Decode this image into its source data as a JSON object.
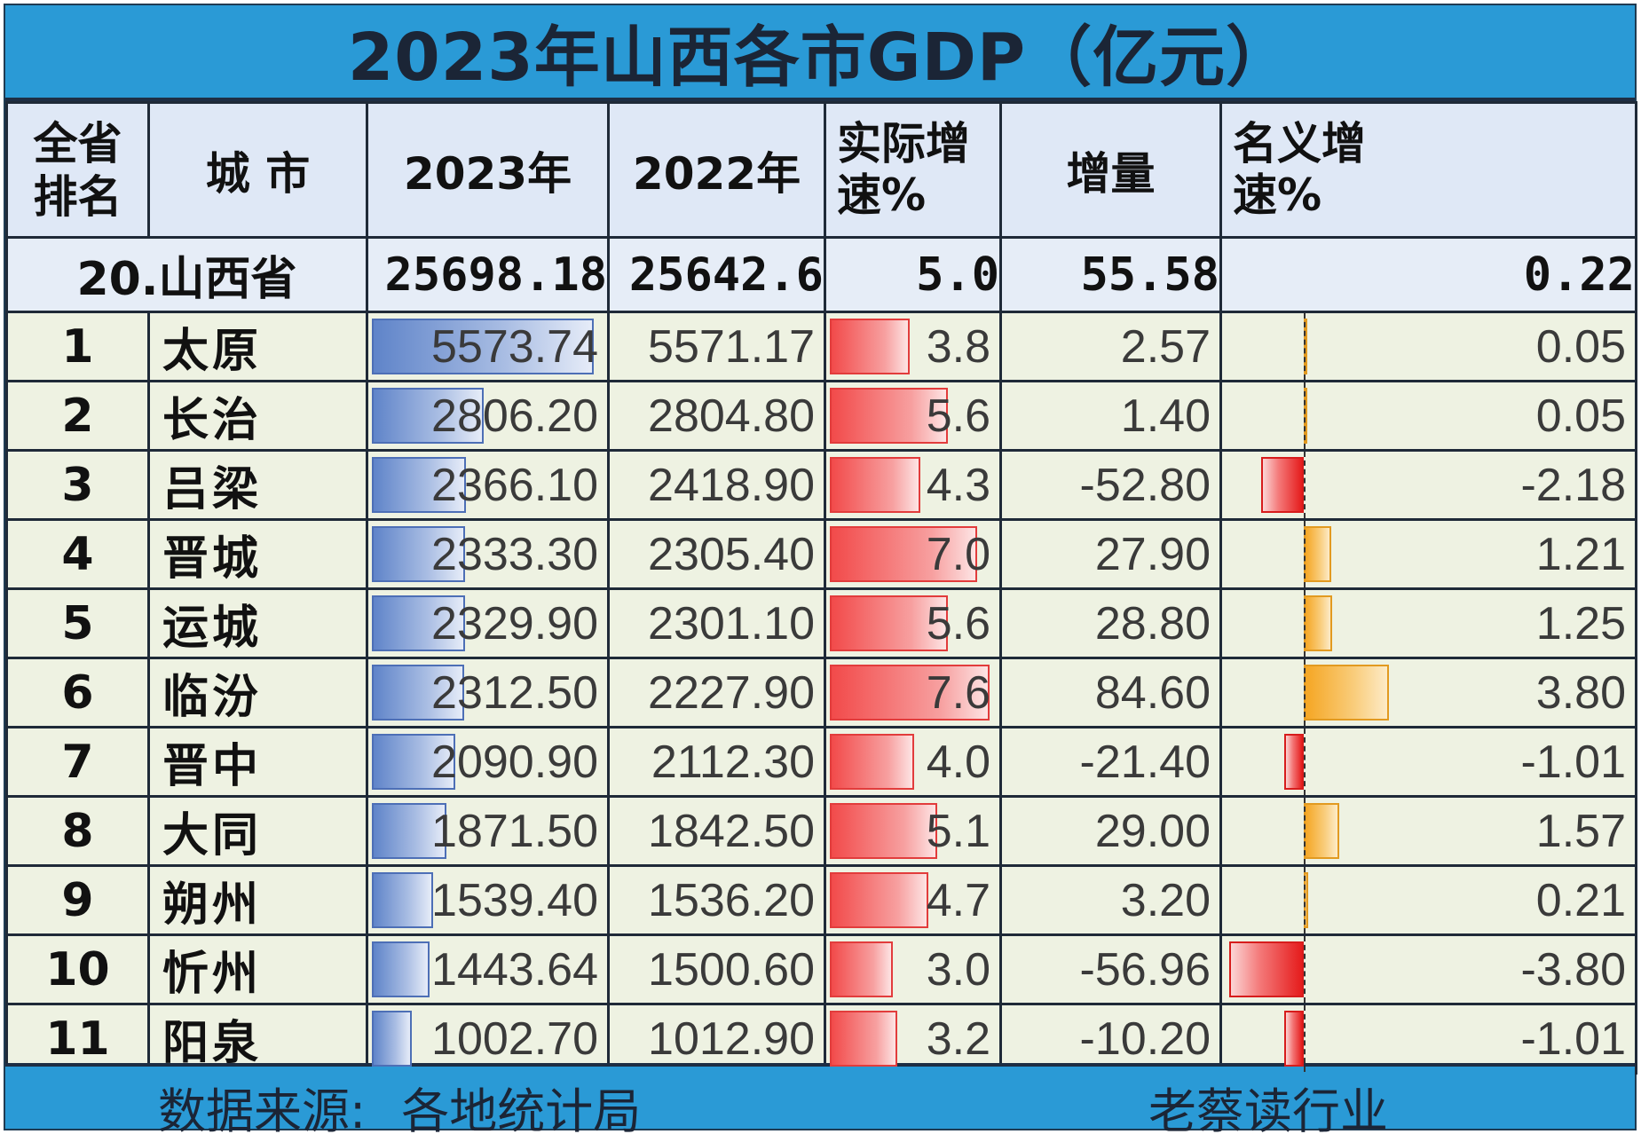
{
  "title": "2023年山西各市GDP（亿元）",
  "headers": {
    "rank": [
      "全省",
      "排名"
    ],
    "city": "城 市",
    "y2023": "2023年",
    "y2022": "2022年",
    "real_growth": [
      "实际增",
      "速%"
    ],
    "increment": "增量",
    "nominal_growth": [
      "名义增",
      "速%"
    ]
  },
  "province": {
    "name": "20.山西省",
    "gdp2023": "25698.18",
    "gdp2022": "25642.6",
    "real_growth": "5.0",
    "increment": "55.58",
    "nominal_growth": "0.22"
  },
  "rows": [
    {
      "rank": "1",
      "city": "太原",
      "gdp2023": "5573.74",
      "gdp2022": "5571.17",
      "real_growth": "3.8",
      "increment": "2.57",
      "nominal_growth": "0.05"
    },
    {
      "rank": "2",
      "city": "长治",
      "gdp2023": "2806.20",
      "gdp2022": "2804.80",
      "real_growth": "5.6",
      "increment": "1.40",
      "nominal_growth": "0.05"
    },
    {
      "rank": "3",
      "city": "吕梁",
      "gdp2023": "2366.10",
      "gdp2022": "2418.90",
      "real_growth": "4.3",
      "increment": "-52.80",
      "nominal_growth": "-2.18"
    },
    {
      "rank": "4",
      "city": "晋城",
      "gdp2023": "2333.30",
      "gdp2022": "2305.40",
      "real_growth": "7.0",
      "increment": "27.90",
      "nominal_growth": "1.21"
    },
    {
      "rank": "5",
      "city": "运城",
      "gdp2023": "2329.90",
      "gdp2022": "2301.10",
      "real_growth": "5.6",
      "increment": "28.80",
      "nominal_growth": "1.25"
    },
    {
      "rank": "6",
      "city": "临汾",
      "gdp2023": "2312.50",
      "gdp2022": "2227.90",
      "real_growth": "7.6",
      "increment": "84.60",
      "nominal_growth": "3.80"
    },
    {
      "rank": "7",
      "city": "晋中",
      "gdp2023": "2090.90",
      "gdp2022": "2112.30",
      "real_growth": "4.0",
      "increment": "-21.40",
      "nominal_growth": "-1.01"
    },
    {
      "rank": "8",
      "city": "大同",
      "gdp2023": "1871.50",
      "gdp2022": "1842.50",
      "real_growth": "5.1",
      "increment": "29.00",
      "nominal_growth": "1.57"
    },
    {
      "rank": "9",
      "city": "朔州",
      "gdp2023": "1539.40",
      "gdp2022": "1536.20",
      "real_growth": "4.7",
      "increment": "3.20",
      "nominal_growth": "0.21"
    },
    {
      "rank": "10",
      "city": "忻州",
      "gdp2023": "1443.64",
      "gdp2022": "1500.60",
      "real_growth": "3.0",
      "increment": "-56.96",
      "nominal_growth": "-3.80"
    },
    {
      "rank": "11",
      "city": "阳泉",
      "gdp2023": "1002.70",
      "gdp2022": "1012.90",
      "real_growth": "3.2",
      "increment": "-10.20",
      "nominal_growth": "-1.01"
    }
  ],
  "footer": {
    "source_label": "数据来源:",
    "source": "各地统计局",
    "author": "老蔡读行业"
  },
  "colors": {
    "title_bar": "#2a9ad6",
    "header_bg": "#dfe8f6",
    "row_bg": "#eef2e2",
    "bar_2023": "#5f84c9",
    "bar_real_growth": "#f24a4a",
    "bar_nominal_negative": "#e51c1c",
    "bar_nominal_positive": "#f5a623"
  },
  "chart_data": {
    "type": "table",
    "title": "2023年山西各市GDP（亿元）",
    "columns": [
      "全省排名",
      "城 市",
      "2023年",
      "2022年",
      "实际增速%",
      "增量",
      "名义增速%"
    ],
    "categories": [
      "太原",
      "长治",
      "吕梁",
      "晋城",
      "运城",
      "临汾",
      "晋中",
      "大同",
      "朔州",
      "忻州",
      "阳泉"
    ],
    "series": [
      {
        "name": "2023年",
        "values": [
          5573.74,
          2806.2,
          2366.1,
          2333.3,
          2329.9,
          2312.5,
          2090.9,
          1871.5,
          1539.4,
          1443.64,
          1002.7
        ]
      },
      {
        "name": "2022年",
        "values": [
          5571.17,
          2804.8,
          2418.9,
          2305.4,
          2301.1,
          2227.9,
          2112.3,
          1842.5,
          1536.2,
          1500.6,
          1012.9
        ]
      },
      {
        "name": "实际增速%",
        "values": [
          3.8,
          5.6,
          4.3,
          7.0,
          5.6,
          7.6,
          4.0,
          5.1,
          4.7,
          3.0,
          3.2
        ]
      },
      {
        "name": "增量",
        "values": [
          2.57,
          1.4,
          -52.8,
          27.9,
          28.8,
          84.6,
          -21.4,
          29.0,
          3.2,
          -56.96,
          -10.2
        ]
      },
      {
        "name": "名义增速%",
        "values": [
          0.05,
          0.05,
          -2.18,
          1.21,
          1.25,
          3.8,
          -1.01,
          1.57,
          0.21,
          -3.8,
          -1.01
        ]
      }
    ],
    "total": {
      "name": "20.山西省",
      "gdp2023": 25698.18,
      "gdp2022": 25642.6,
      "real_growth": 5.0,
      "increment": 55.58,
      "nominal_growth": 0.22
    }
  }
}
